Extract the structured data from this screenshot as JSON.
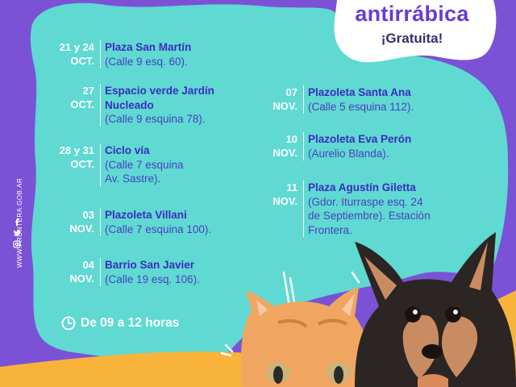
{
  "title": {
    "main": "antirrábica",
    "sub": "¡Gratuita!"
  },
  "sidebar": {
    "url": "WWW.FRONTERA.GOB.AR",
    "icons": [
      "facebook-icon",
      "twitter-icon",
      "instagram-icon"
    ]
  },
  "left_entries": [
    {
      "date1": "21 y 24",
      "date2": "OCT.",
      "place": "Plaza San Martín",
      "addr": [
        "(Calle 9 esq. 60)."
      ]
    },
    {
      "date1": "27",
      "date2": "OCT.",
      "place": "Espacio verde Jardín Nucleado",
      "addr": [
        "(Calle 9 esquina 78)."
      ]
    },
    {
      "date1": "28 y 31",
      "date2": "OCT.",
      "place": "Ciclo vía",
      "addr": [
        "(Calle 7 esquina",
        "Av. Sastre)."
      ]
    },
    {
      "date1": "03",
      "date2": "NOV.",
      "place": "Plazoleta Villani",
      "addr": [
        "(Calle 7 esquina 100)."
      ]
    },
    {
      "date1": "04",
      "date2": "NOV.",
      "place": "Barrio San Javier",
      "addr": [
        "(Calle 19 esq. 106)."
      ]
    }
  ],
  "right_entries": [
    {
      "date1": "07",
      "date2": "NOV.",
      "place": "Plazoleta Santa Ana",
      "addr": [
        "(Calle 5 esquina 112)."
      ]
    },
    {
      "date1": "10",
      "date2": "NOV.",
      "place": "Plazoleta Eva Perón",
      "addr": [
        "(Aurelio Blanda)."
      ]
    },
    {
      "date1": "11",
      "date2": "NOV.",
      "place": "Plaza Agustín Giletta",
      "addr": [
        "(Gdor. Iturraspe esq. 24",
        "de Septiembre). Estación",
        "Frontera."
      ]
    }
  ],
  "hours": "De 09 a 12 horas",
  "colors": {
    "purple": "#7b52d6",
    "turquoise": "#5fd9d2",
    "yellow": "#f8b43a",
    "text_dark": "#3b2dbd"
  }
}
